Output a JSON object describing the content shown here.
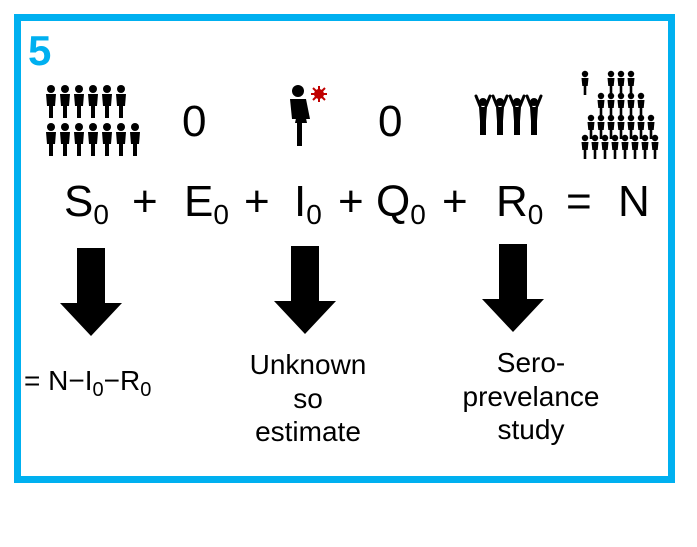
{
  "panel": {
    "number": "5"
  },
  "equation": {
    "s": "S",
    "s_sub": "0",
    "e": "E",
    "e_sub": "0",
    "i": "I",
    "i_sub": "0",
    "q": "Q",
    "q_sub": "0",
    "r": "R",
    "r_sub": "0",
    "n": "N",
    "plus": "+",
    "equals": "="
  },
  "zeros": {
    "e_value": "0",
    "q_value": "0"
  },
  "icons": {
    "susceptible": "crowd-icon",
    "infected": "infected-person-icon",
    "recovered": "cheering-group-icon",
    "population": "population-pyramid-icon"
  },
  "notes": {
    "s_note": {
      "prefix": "= N−I",
      "sub1": "0",
      "mid": "−R",
      "sub2": "0"
    },
    "i_note": {
      "line1": "Unknown",
      "line2": "so",
      "line3": "estimate"
    },
    "r_note": {
      "line1": "Sero-",
      "line2": "prevelance",
      "line3": "study"
    }
  },
  "colors": {
    "frame": "#00b0f0",
    "panel_number": "#00b0f0",
    "virus": "#c00000"
  }
}
